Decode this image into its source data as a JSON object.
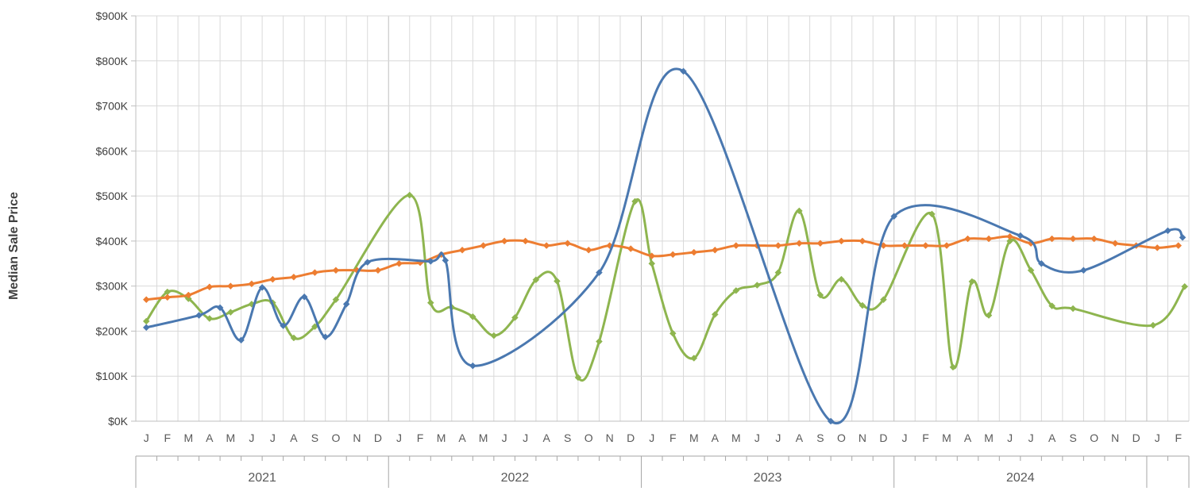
{
  "chart_data": {
    "type": "line",
    "ylabel": "Median Sale Price",
    "y_ticks": [
      "$0K",
      "$100K",
      "$200K",
      "$300K",
      "$400K",
      "$500K",
      "$600K",
      "$700K",
      "$800K",
      "$900K"
    ],
    "ylim": [
      0,
      900000
    ],
    "grid": "vertical and horizontal gridlines",
    "months": [
      "J",
      "F",
      "M",
      "A",
      "M",
      "J",
      "J",
      "A",
      "S",
      "O",
      "N",
      "D",
      "J",
      "F",
      "M",
      "A",
      "M",
      "J",
      "J",
      "A",
      "S",
      "O",
      "N",
      "D",
      "J",
      "F",
      "M",
      "A",
      "M",
      "J",
      "J",
      "A",
      "S",
      "O",
      "N",
      "D",
      "J",
      "F",
      "M",
      "A",
      "M",
      "J",
      "J",
      "A",
      "S",
      "O",
      "N",
      "D",
      "J",
      "F"
    ],
    "years": [
      "2021",
      "2022",
      "2023",
      "2024"
    ],
    "colors": {
      "blue": "#4a78b0",
      "orange": "#ed7d31",
      "green": "#8eb54f"
    },
    "series": [
      {
        "color": "#4a78b0",
        "points": [
          [
            0,
            208000
          ],
          [
            2.5,
            235000
          ],
          [
            3.5,
            252000
          ],
          [
            4.5,
            180000
          ],
          [
            5.5,
            297000
          ],
          [
            6.5,
            212000
          ],
          [
            7.5,
            276000
          ],
          [
            8.5,
            187000
          ],
          [
            9.5,
            260000
          ],
          [
            10.5,
            353000
          ],
          [
            13.5,
            355000
          ],
          [
            14.2,
            357000
          ],
          [
            15.5,
            123000
          ],
          [
            21.5,
            330000
          ],
          [
            25.5,
            777000
          ],
          [
            32.5,
            0
          ],
          [
            35.5,
            455000
          ],
          [
            41.5,
            412000
          ],
          [
            42.5,
            350000
          ],
          [
            44.5,
            335000
          ],
          [
            48.5,
            423000
          ],
          [
            49.2,
            408000
          ]
        ]
      },
      {
        "color": "#ed7d31",
        "points": [
          [
            0,
            270000
          ],
          [
            1,
            275000
          ],
          [
            2,
            280000
          ],
          [
            3,
            298000
          ],
          [
            4,
            300000
          ],
          [
            5,
            305000
          ],
          [
            6,
            315000
          ],
          [
            7,
            320000
          ],
          [
            8,
            330000
          ],
          [
            9,
            335000
          ],
          [
            10,
            335000
          ],
          [
            11,
            335000
          ],
          [
            12,
            350000
          ],
          [
            13,
            352000
          ],
          [
            14,
            370000
          ],
          [
            15,
            380000
          ],
          [
            16,
            390000
          ],
          [
            17,
            400000
          ],
          [
            18,
            400000
          ],
          [
            19,
            390000
          ],
          [
            20,
            395000
          ],
          [
            21,
            380000
          ],
          [
            22,
            390000
          ],
          [
            23,
            383000
          ],
          [
            24,
            367000
          ],
          [
            25,
            370000
          ],
          [
            26,
            375000
          ],
          [
            27,
            380000
          ],
          [
            28,
            390000
          ],
          [
            29,
            390000
          ],
          [
            30,
            390000
          ],
          [
            31,
            395000
          ],
          [
            32,
            395000
          ],
          [
            33,
            400000
          ],
          [
            34,
            400000
          ],
          [
            35,
            390000
          ],
          [
            36,
            390000
          ],
          [
            37,
            390000
          ],
          [
            38,
            390000
          ],
          [
            39,
            405000
          ],
          [
            40,
            405000
          ],
          [
            41,
            410000
          ],
          [
            42,
            395000
          ],
          [
            43,
            405000
          ],
          [
            44,
            405000
          ],
          [
            45,
            405000
          ],
          [
            46,
            395000
          ],
          [
            47,
            390000
          ],
          [
            48,
            385000
          ],
          [
            49,
            390000
          ]
        ]
      },
      {
        "color": "#8eb54f",
        "points": [
          [
            0,
            222000
          ],
          [
            1,
            287000
          ],
          [
            2,
            272000
          ],
          [
            3,
            228000
          ],
          [
            4,
            242000
          ],
          [
            5,
            260000
          ],
          [
            6,
            263000
          ],
          [
            7,
            185000
          ],
          [
            8,
            210000
          ],
          [
            9,
            270000
          ],
          [
            12.5,
            502000
          ],
          [
            13.5,
            263000
          ],
          [
            14.5,
            253000
          ],
          [
            15.5,
            232000
          ],
          [
            16.5,
            190000
          ],
          [
            17.5,
            230000
          ],
          [
            18.5,
            314000
          ],
          [
            19.5,
            311000
          ],
          [
            20.5,
            97000
          ],
          [
            21.5,
            177000
          ],
          [
            23.2,
            488000
          ],
          [
            24,
            350000
          ],
          [
            25,
            195000
          ],
          [
            26,
            140000
          ],
          [
            27,
            237000
          ],
          [
            28,
            290000
          ],
          [
            29,
            302000
          ],
          [
            30,
            330000
          ],
          [
            31,
            467000
          ],
          [
            32,
            280000
          ],
          [
            33,
            315000
          ],
          [
            34,
            257000
          ],
          [
            35,
            270000
          ],
          [
            37.3,
            460000
          ],
          [
            38.3,
            120000
          ],
          [
            39.2,
            310000
          ],
          [
            40,
            235000
          ],
          [
            41,
            400000
          ],
          [
            42,
            335000
          ],
          [
            43,
            256000
          ],
          [
            44,
            250000
          ],
          [
            47.8,
            213000
          ],
          [
            49.3,
            299000
          ]
        ]
      }
    ]
  }
}
